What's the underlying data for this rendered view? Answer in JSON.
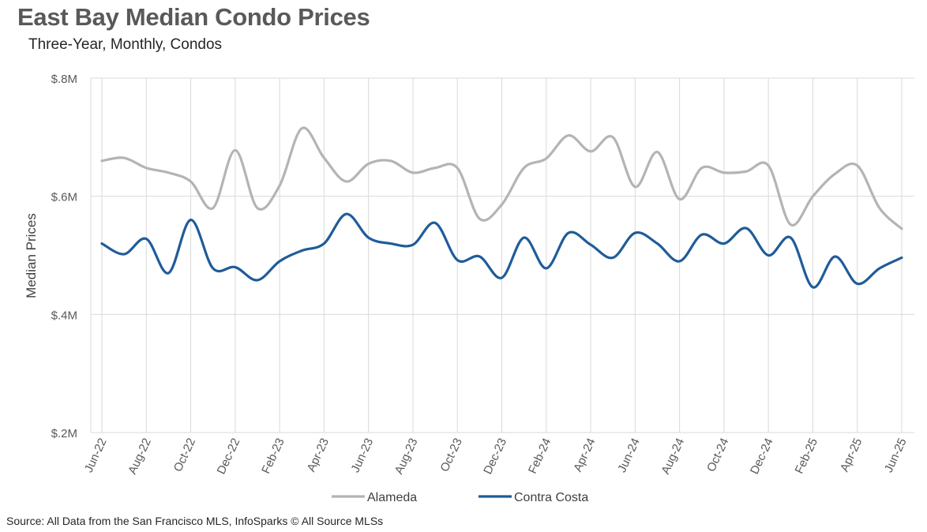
{
  "title": "East Bay Median Condo Prices",
  "subtitle": "Three-Year, Monthly, Condos",
  "source": "Source: All Data from the San Francisco MLS, InfoSparks © All Source MLSs",
  "chart_data": {
    "type": "line",
    "title": "East Bay Median Condo Prices",
    "subtitle": "Three-Year, Monthly, Condos",
    "xlabel": "",
    "ylabel": "Median Prices",
    "ylim": [
      200000,
      800000
    ],
    "y_ticks": [
      200000,
      400000,
      600000,
      800000
    ],
    "y_tick_labels": [
      "$.2M",
      "$.4M",
      "$.6M",
      "$.8M"
    ],
    "x": [
      "Jun-22",
      "Jul-22",
      "Aug-22",
      "Sep-22",
      "Oct-22",
      "Nov-22",
      "Dec-22",
      "Jan-23",
      "Feb-23",
      "Mar-23",
      "Apr-23",
      "May-23",
      "Jun-23",
      "Jul-23",
      "Aug-23",
      "Sep-23",
      "Oct-23",
      "Nov-23",
      "Dec-23",
      "Jan-24",
      "Feb-24",
      "Mar-24",
      "Apr-24",
      "May-24",
      "Jun-24",
      "Jul-24",
      "Aug-24",
      "Sep-24",
      "Oct-24",
      "Nov-24",
      "Dec-24",
      "Jan-25",
      "Feb-25",
      "Mar-25",
      "Apr-25",
      "May-25",
      "Jun-25"
    ],
    "x_tick_labels": [
      "Jun-22",
      "Aug-22",
      "Oct-22",
      "Dec-22",
      "Feb-23",
      "Apr-23",
      "Jun-23",
      "Aug-23",
      "Oct-23",
      "Dec-23",
      "Feb-24",
      "Apr-24",
      "Jun-24",
      "Aug-24",
      "Oct-24",
      "Dec-24",
      "Feb-25",
      "Apr-25",
      "Jun-25"
    ],
    "grid": "vertical and horizontal",
    "legend": "bottom",
    "series": [
      {
        "name": "Alameda",
        "color": "#b4b4b4",
        "values": [
          660000,
          665000,
          648000,
          640000,
          625000,
          580000,
          678000,
          580000,
          618000,
          715000,
          665000,
          625000,
          655000,
          660000,
          640000,
          648000,
          648000,
          562000,
          586000,
          648000,
          664000,
          703000,
          676000,
          700000,
          616000,
          675000,
          595000,
          648000,
          640000,
          642000,
          652000,
          552000,
          600000,
          638000,
          652000,
          580000,
          545000
        ]
      },
      {
        "name": "Contra Costa",
        "color": "#1f5c99",
        "values": [
          520000,
          502000,
          528000,
          470000,
          560000,
          478000,
          480000,
          458000,
          490000,
          508000,
          520000,
          570000,
          530000,
          520000,
          518000,
          555000,
          492000,
          498000,
          462000,
          530000,
          478000,
          538000,
          518000,
          496000,
          538000,
          520000,
          490000,
          535000,
          520000,
          546000,
          500000,
          530000,
          446000,
          498000,
          452000,
          478000,
          496000
        ]
      }
    ]
  }
}
